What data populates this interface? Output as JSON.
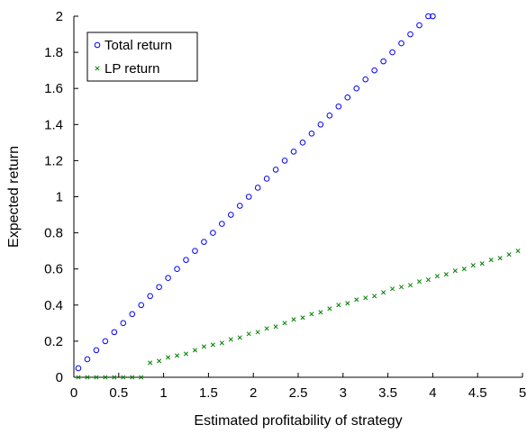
{
  "chart_data": {
    "type": "scatter",
    "title": "",
    "xlabel": "Estimated profitability of strategy",
    "ylabel": "Expected return",
    "xlim": [
      0,
      5
    ],
    "ylim": [
      0,
      2
    ],
    "xticks": [
      "0",
      "0.5",
      "1",
      "1.5",
      "2",
      "2.5",
      "3",
      "3.5",
      "4",
      "4.5",
      "5"
    ],
    "yticks": [
      "0",
      "0.2",
      "0.4",
      "0.6",
      "0.8",
      "1",
      "1.2",
      "1.4",
      "1.6",
      "1.8",
      "2"
    ],
    "grid": false,
    "legend_position": "top-left",
    "series": [
      {
        "name": "Total return",
        "marker": "circle",
        "color": "#0000ff",
        "x": [
          0.05,
          0.15,
          0.25,
          0.35,
          0.45,
          0.55,
          0.65,
          0.75,
          0.85,
          0.95,
          1.05,
          1.15,
          1.25,
          1.35,
          1.45,
          1.55,
          1.65,
          1.75,
          1.85,
          1.95,
          2.05,
          2.15,
          2.25,
          2.35,
          2.45,
          2.55,
          2.65,
          2.75,
          2.85,
          2.95,
          3.05,
          3.15,
          3.25,
          3.35,
          3.45,
          3.55,
          3.65,
          3.75,
          3.85,
          3.95,
          4.0
        ],
        "y": [
          0.05,
          0.1,
          0.15,
          0.2,
          0.25,
          0.3,
          0.35,
          0.4,
          0.45,
          0.5,
          0.55,
          0.6,
          0.65,
          0.7,
          0.75,
          0.8,
          0.85,
          0.9,
          0.95,
          1.0,
          1.05,
          1.1,
          1.15,
          1.2,
          1.25,
          1.3,
          1.35,
          1.4,
          1.45,
          1.5,
          1.55,
          1.6,
          1.65,
          1.7,
          1.75,
          1.8,
          1.85,
          1.9,
          1.95,
          2.0,
          2.0
        ]
      },
      {
        "name": "LP return",
        "marker": "x",
        "color": "#008000",
        "x": [
          0.05,
          0.15,
          0.25,
          0.35,
          0.45,
          0.55,
          0.65,
          0.75,
          0.85,
          0.95,
          1.05,
          1.15,
          1.25,
          1.35,
          1.45,
          1.55,
          1.65,
          1.75,
          1.85,
          1.95,
          2.05,
          2.15,
          2.25,
          2.35,
          2.45,
          2.55,
          2.65,
          2.75,
          2.85,
          2.95,
          3.05,
          3.15,
          3.25,
          3.35,
          3.45,
          3.55,
          3.65,
          3.75,
          3.85,
          3.95,
          4.05,
          4.15,
          4.25,
          4.35,
          4.45,
          4.55,
          4.65,
          4.75,
          4.85,
          4.95
        ],
        "y": [
          0,
          0,
          0,
          0,
          0,
          0,
          0,
          0,
          0.08,
          0.09,
          0.11,
          0.12,
          0.13,
          0.15,
          0.17,
          0.18,
          0.19,
          0.21,
          0.22,
          0.24,
          0.25,
          0.27,
          0.28,
          0.3,
          0.32,
          0.33,
          0.35,
          0.36,
          0.38,
          0.4,
          0.41,
          0.43,
          0.44,
          0.45,
          0.47,
          0.49,
          0.5,
          0.51,
          0.53,
          0.54,
          0.56,
          0.57,
          0.59,
          0.6,
          0.62,
          0.63,
          0.65,
          0.66,
          0.68,
          0.7
        ]
      }
    ]
  }
}
